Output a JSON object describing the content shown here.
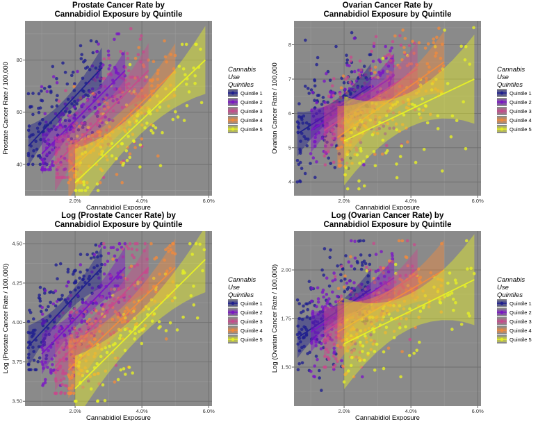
{
  "chart_data": [
    {
      "type": "scatter",
      "title_lines": [
        "Prostate Cancer Rate by",
        "Cannabidiol Exposure by Quintile"
      ],
      "xlabel": "Cannabidiol Exposure",
      "ylabel": "Prostate Cancer Rate / 100,000",
      "xlim": [
        0.5,
        6.1
      ],
      "ylim": [
        28,
        95
      ],
      "xticks": [
        {
          "v": 2,
          "label": "2.0%"
        },
        {
          "v": 4,
          "label": "4.0%"
        },
        {
          "v": 6,
          "label": "6.0%"
        }
      ],
      "yticks": [
        {
          "v": 40,
          "label": "40"
        },
        {
          "v": 60,
          "label": "60"
        },
        {
          "v": 80,
          "label": "80"
        }
      ],
      "legend": {
        "title_lines": [
          "Cannabis",
          "Use",
          "Quintiles"
        ],
        "placement": "right"
      },
      "series": [
        {
          "name": "Quintile 1",
          "color": "#1f1f8f",
          "xrange": [
            0.6,
            2.8
          ],
          "yrange": [
            40,
            92
          ],
          "n": 140,
          "line": [
            [
              0.6,
              47
            ],
            [
              2.8,
              77
            ]
          ],
          "band": 3
        },
        {
          "name": "Quintile 2",
          "color": "#7a16c4",
          "xrange": [
            1.0,
            3.5
          ],
          "yrange": [
            38,
            90
          ],
          "n": 140,
          "line": [
            [
              1.0,
              44
            ],
            [
              3.5,
              76
            ]
          ],
          "band": 3
        },
        {
          "name": "Quintile 3",
          "color": "#c74a8c",
          "xrange": [
            1.4,
            4.2
          ],
          "yrange": [
            35,
            92
          ],
          "n": 140,
          "line": [
            [
              1.4,
              40
            ],
            [
              4.2,
              76
            ]
          ],
          "band": 4
        },
        {
          "name": "Quintile 4",
          "color": "#ef8a3e",
          "xrange": [
            1.8,
            5.0
          ],
          "yrange": [
            33,
            88
          ],
          "n": 140,
          "line": [
            [
              1.8,
              37
            ],
            [
              5.0,
              76
            ]
          ],
          "band": 4
        },
        {
          "name": "Quintile 5",
          "color": "#e6f026",
          "xrange": [
            2.0,
            5.9
          ],
          "yrange": [
            30,
            86
          ],
          "n": 90,
          "line": [
            [
              2.0,
              33
            ],
            [
              5.9,
              80
            ]
          ],
          "band": 5
        }
      ]
    },
    {
      "type": "scatter",
      "title_lines": [
        "Ovarian Cancer Rate by",
        "Cannabidiol Exposure by Quintile"
      ],
      "xlabel": "Cannabidiol Exposure",
      "ylabel": "Ovarian Cancer Rate / 100,000",
      "xlim": [
        0.5,
        6.1
      ],
      "ylim": [
        3.6,
        8.7
      ],
      "xticks": [
        {
          "v": 2,
          "label": "2.0%"
        },
        {
          "v": 4,
          "label": "4.0%"
        },
        {
          "v": 6,
          "label": "6.0%"
        }
      ],
      "yticks": [
        {
          "v": 4,
          "label": "4"
        },
        {
          "v": 5,
          "label": "5"
        },
        {
          "v": 6,
          "label": "6"
        },
        {
          "v": 7,
          "label": "7"
        },
        {
          "v": 8,
          "label": "8"
        }
      ],
      "legend": {
        "title_lines": [
          "Cannabis",
          "Use",
          "Quintiles"
        ],
        "placement": "right"
      },
      "series": [
        {
          "name": "Quintile 1",
          "color": "#1f1f8f",
          "xrange": [
            0.6,
            2.8
          ],
          "yrange": [
            4.0,
            8.5
          ],
          "n": 140,
          "line": [
            [
              0.6,
              5.4
            ],
            [
              2.8,
              6.8
            ]
          ],
          "band": 0.25
        },
        {
          "name": "Quintile 2",
          "color": "#7a16c4",
          "xrange": [
            1.0,
            3.5
          ],
          "yrange": [
            4.5,
            8.5
          ],
          "n": 140,
          "line": [
            [
              1.0,
              5.5
            ],
            [
              3.5,
              7.1
            ]
          ],
          "band": 0.25
        },
        {
          "name": "Quintile 3",
          "color": "#c74a8c",
          "xrange": [
            1.4,
            4.2
          ],
          "yrange": [
            4.5,
            8.5
          ],
          "n": 140,
          "line": [
            [
              1.4,
              5.5
            ],
            [
              4.2,
              7.3
            ]
          ],
          "band": 0.3
        },
        {
          "name": "Quintile 4",
          "color": "#ef8a3e",
          "xrange": [
            1.8,
            5.0
          ],
          "yrange": [
            4.2,
            8.5
          ],
          "n": 140,
          "line": [
            [
              1.8,
              5.3
            ],
            [
              5.0,
              7.5
            ]
          ],
          "band": 0.35
        },
        {
          "name": "Quintile 5",
          "color": "#e6f026",
          "xrange": [
            2.0,
            5.9
          ],
          "yrange": [
            3.8,
            8.5
          ],
          "n": 90,
          "line": [
            [
              2.0,
              5.2
            ],
            [
              5.9,
              7.0
            ]
          ],
          "band": 0.5
        }
      ]
    },
    {
      "type": "scatter",
      "title_lines": [
        "Log (Prostate Cancer Rate) by",
        "Cannabidiol Exposure by Quintile"
      ],
      "xlabel": "Cannabidiol Exposure",
      "ylabel": "Log (Prostate Cancer Rate / 100,000)",
      "xlim": [
        0.5,
        6.1
      ],
      "ylim": [
        3.47,
        4.58
      ],
      "xticks": [
        {
          "v": 2,
          "label": "2.0%"
        },
        {
          "v": 4,
          "label": "4.0%"
        },
        {
          "v": 6,
          "label": "6.0%"
        }
      ],
      "yticks": [
        {
          "v": 3.5,
          "label": "3.50"
        },
        {
          "v": 3.75,
          "label": "3.75"
        },
        {
          "v": 4.0,
          "label": "4.00"
        },
        {
          "v": 4.25,
          "label": "4.25"
        },
        {
          "v": 4.5,
          "label": "4.50"
        }
      ],
      "legend": {
        "title_lines": [
          "Cannabis",
          "Use",
          "Quintiles"
        ],
        "placement": "right"
      },
      "series": [
        {
          "name": "Quintile 1",
          "color": "#1f1f8f",
          "xrange": [
            0.6,
            2.8
          ],
          "yrange": [
            3.7,
            4.5
          ],
          "n": 140,
          "line": [
            [
              0.6,
              3.85
            ],
            [
              2.8,
              4.35
            ]
          ],
          "band": 0.05
        },
        {
          "name": "Quintile 2",
          "color": "#7a16c4",
          "xrange": [
            1.0,
            3.5
          ],
          "yrange": [
            3.6,
            4.5
          ],
          "n": 140,
          "line": [
            [
              1.0,
              3.8
            ],
            [
              3.5,
              4.35
            ]
          ],
          "band": 0.05
        },
        {
          "name": "Quintile 3",
          "color": "#c74a8c",
          "xrange": [
            1.4,
            4.2
          ],
          "yrange": [
            3.55,
            4.5
          ],
          "n": 140,
          "line": [
            [
              1.4,
              3.72
            ],
            [
              4.2,
              4.35
            ]
          ],
          "band": 0.06
        },
        {
          "name": "Quintile 4",
          "color": "#ef8a3e",
          "xrange": [
            1.8,
            5.0
          ],
          "yrange": [
            3.55,
            4.5
          ],
          "n": 140,
          "line": [
            [
              1.8,
              3.7
            ],
            [
              5.0,
              4.35
            ]
          ],
          "band": 0.07
        },
        {
          "name": "Quintile 5",
          "color": "#e6f026",
          "xrange": [
            2.0,
            5.9
          ],
          "yrange": [
            3.5,
            4.5
          ],
          "n": 90,
          "line": [
            [
              2.0,
              3.58
            ],
            [
              5.9,
              4.4
            ]
          ],
          "band": 0.08
        }
      ]
    },
    {
      "type": "scatter",
      "title_lines": [
        "Log (Ovarian Cancer Rate) by",
        "Cannabidiol Exposure by Quintile"
      ],
      "xlabel": "Cannabidiol Exposure",
      "ylabel": "Log (Ovarian Cancer Rate / 100,000)",
      "xlim": [
        0.5,
        6.1
      ],
      "ylim": [
        1.3,
        2.2
      ],
      "xticks": [
        {
          "v": 2,
          "label": "2.0%"
        },
        {
          "v": 4,
          "label": "4.0%"
        },
        {
          "v": 6,
          "label": "6.0%"
        }
      ],
      "yticks": [
        {
          "v": 1.5,
          "label": "1.50"
        },
        {
          "v": 1.75,
          "label": "1.75"
        },
        {
          "v": 2.0,
          "label": "2.00"
        }
      ],
      "legend": {
        "title_lines": [
          "Cannabis",
          "Use",
          "Quintiles"
        ],
        "placement": "right"
      },
      "series": [
        {
          "name": "Quintile 1",
          "color": "#1f1f8f",
          "xrange": [
            0.6,
            2.8
          ],
          "yrange": [
            1.38,
            2.15
          ],
          "n": 140,
          "line": [
            [
              0.6,
              1.65
            ],
            [
              2.8,
              1.9
            ]
          ],
          "band": 0.04
        },
        {
          "name": "Quintile 2",
          "color": "#7a16c4",
          "xrange": [
            1.0,
            3.5
          ],
          "yrange": [
            1.45,
            2.15
          ],
          "n": 140,
          "line": [
            [
              1.0,
              1.68
            ],
            [
              3.5,
              1.96
            ]
          ],
          "band": 0.04
        },
        {
          "name": "Quintile 3",
          "color": "#c74a8c",
          "xrange": [
            1.4,
            4.2
          ],
          "yrange": [
            1.5,
            2.15
          ],
          "n": 140,
          "line": [
            [
              1.4,
              1.68
            ],
            [
              4.2,
              1.98
            ]
          ],
          "band": 0.05
        },
        {
          "name": "Quintile 4",
          "color": "#ef8a3e",
          "xrange": [
            1.8,
            5.0
          ],
          "yrange": [
            1.45,
            2.15
          ],
          "n": 140,
          "line": [
            [
              1.8,
              1.68
            ],
            [
              5.0,
              2.0
            ]
          ],
          "band": 0.06
        },
        {
          "name": "Quintile 5",
          "color": "#e6f026",
          "xrange": [
            2.0,
            5.9
          ],
          "yrange": [
            1.32,
            2.15
          ],
          "n": 90,
          "line": [
            [
              2.0,
              1.62
            ],
            [
              5.9,
              1.95
            ]
          ],
          "band": 0.09
        }
      ]
    }
  ]
}
